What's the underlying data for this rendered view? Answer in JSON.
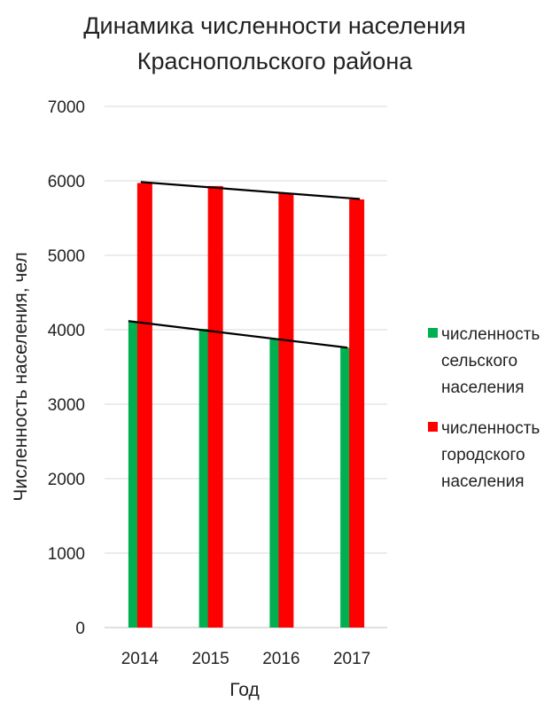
{
  "chart_data": {
    "type": "bar",
    "title_lines": [
      "Динамика численности населения",
      "Краснопольского района"
    ],
    "xlabel": "Год",
    "ylabel": "Численность населения, чел",
    "categories": [
      "2014",
      "2015",
      "2016",
      "2017"
    ],
    "ylim": [
      0,
      7000
    ],
    "yticks": [
      "0",
      "1000",
      "2000",
      "3000",
      "4000",
      "5000",
      "6000",
      "7000"
    ],
    "grid": true,
    "legend_position": "right",
    "series": [
      {
        "name_lines": [
          "численность",
          "сельского",
          "населения"
        ],
        "color": "#00B050",
        "values": [
          4110,
          4010,
          3870,
          3760
        ]
      },
      {
        "name_lines": [
          "численность",
          "городского",
          "населения"
        ],
        "color": "#FF0000",
        "values": [
          5970,
          5930,
          5830,
          5750
        ]
      }
    ],
    "trendline_color": "#000000"
  }
}
